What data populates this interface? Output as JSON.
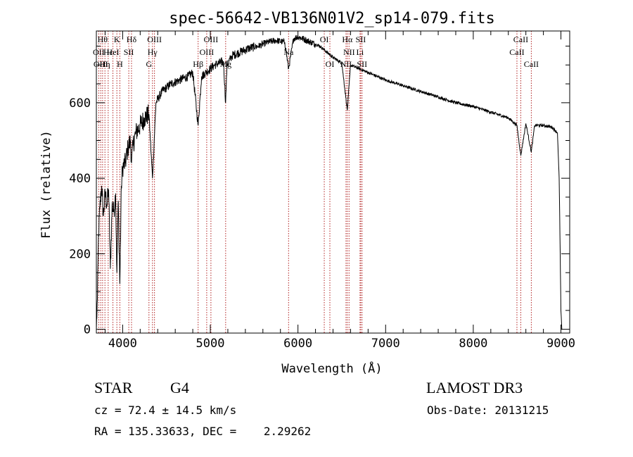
{
  "chart_data": {
    "type": "line",
    "title": "spec-56642-VB136N01V2_sp14-079.fits",
    "xlabel": "Wavelength (Å)",
    "ylabel": "Flux (relative)",
    "xlim": [
      3700,
      9100
    ],
    "ylim": [
      -10,
      790
    ],
    "xticks": [
      4000,
      5000,
      6000,
      7000,
      8000,
      9000
    ],
    "xtick_labels": [
      "4000",
      "5000",
      "6000",
      "7000",
      "8000",
      "9000"
    ],
    "yticks": [
      0,
      200,
      400,
      600
    ],
    "ytick_labels": [
      "0",
      "200",
      "400",
      "600"
    ],
    "series": [
      {
        "name": "flux",
        "x": [
          3700,
          3712,
          3725,
          3740,
          3760,
          3780,
          3800,
          3820,
          3840,
          3860,
          3880,
          3900,
          3920,
          3934,
          3950,
          3968,
          3985,
          4000,
          4030,
          4060,
          4090,
          4101,
          4120,
          4150,
          4200,
          4250,
          4300,
          4340,
          4380,
          4450,
          4550,
          4650,
          4750,
          4800,
          4861,
          4900,
          4950,
          5000,
          5050,
          5100,
          5150,
          5175,
          5190,
          5250,
          5350,
          5450,
          5550,
          5650,
          5750,
          5850,
          5893,
          5950,
          6000,
          6050,
          6100,
          6150,
          6200,
          6250,
          6300,
          6400,
          6500,
          6563,
          6600,
          6650,
          6700,
          6800,
          6900,
          7000,
          7200,
          7400,
          7600,
          7800,
          8000,
          8200,
          8400,
          8498,
          8542,
          8600,
          8662,
          8700,
          8800,
          8900,
          8960,
          8980,
          9000,
          9010
        ],
        "values": [
          0,
          80,
          250,
          320,
          380,
          300,
          360,
          330,
          370,
          160,
          330,
          310,
          360,
          150,
          340,
          120,
          380,
          430,
          440,
          480,
          500,
          440,
          490,
          520,
          540,
          560,
          570,
          400,
          600,
          630,
          650,
          660,
          670,
          680,
          540,
          670,
          680,
          690,
          700,
          705,
          710,
          600,
          700,
          725,
          735,
          745,
          750,
          760,
          765,
          760,
          690,
          770,
          775,
          770,
          765,
          760,
          755,
          750,
          740,
          720,
          705,
          580,
          700,
          695,
          690,
          680,
          670,
          660,
          645,
          630,
          615,
          600,
          590,
          575,
          560,
          540,
          460,
          545,
          470,
          540,
          540,
          535,
          520,
          400,
          50,
          0
        ]
      }
    ],
    "line_markers": [
      {
        "wavelength": 3727,
        "label": "OII",
        "row": 2
      },
      {
        "wavelength": 3750,
        "label": "OIII",
        "row": 3
      },
      {
        "wavelength": 3771,
        "label": "Hθ",
        "row": 1
      },
      {
        "wavelength": 3798,
        "label": "Hη",
        "row": 3
      },
      {
        "wavelength": 3835,
        "label": "Hε",
        "row": 2
      },
      {
        "wavelength": 3889,
        "label": "HeI",
        "row": 2
      },
      {
        "wavelength": 3934,
        "label": "K",
        "row": 1
      },
      {
        "wavelength": 3968,
        "label": "H",
        "row": 3
      },
      {
        "wavelength": 4070,
        "label": "SII",
        "row": 2
      },
      {
        "wavelength": 4101,
        "label": "Hδ",
        "row": 1
      },
      {
        "wavelength": 4300,
        "label": "G",
        "row": 3
      },
      {
        "wavelength": 4340,
        "label": "Hγ",
        "row": 2
      },
      {
        "wavelength": 4363,
        "label": "OIII",
        "row": 1
      },
      {
        "wavelength": 4861,
        "label": "Hβ",
        "row": 3
      },
      {
        "wavelength": 4959,
        "label": "OIII",
        "row": 2
      },
      {
        "wavelength": 5007,
        "label": "OIII",
        "row": 1
      },
      {
        "wavelength": 5175,
        "label": "Mg",
        "row": 3
      },
      {
        "wavelength": 5893,
        "label": "Na",
        "row": 2
      },
      {
        "wavelength": 6300,
        "label": "OI",
        "row": 1
      },
      {
        "wavelength": 6364,
        "label": "OI",
        "row": 3
      },
      {
        "wavelength": 6548,
        "label": "NII",
        "row": 3
      },
      {
        "wavelength": 6563,
        "label": "Hα",
        "row": 1
      },
      {
        "wavelength": 6583,
        "label": "NII",
        "row": 2
      },
      {
        "wavelength": 6708,
        "label": "Li",
        "row": 2
      },
      {
        "wavelength": 6716,
        "label": "SII",
        "row": 1
      },
      {
        "wavelength": 6731,
        "label": "SII",
        "row": 3
      },
      {
        "wavelength": 8498,
        "label": "CaII",
        "row": 2
      },
      {
        "wavelength": 8542,
        "label": "CaII",
        "row": 1
      },
      {
        "wavelength": 8662,
        "label": "CaII",
        "row": 3
      }
    ],
    "colors": {
      "line": "#000000",
      "marker": "#b22222",
      "axes": "#000000"
    }
  },
  "info": {
    "object_class": "STAR",
    "subclass": "G4",
    "survey": "LAMOST DR3",
    "cz": "cz = 72.4 ± 14.5 km/s",
    "obs_date": "Obs-Date: 20131215",
    "coords": "RA = 135.33633, DEC =    2.29262"
  }
}
